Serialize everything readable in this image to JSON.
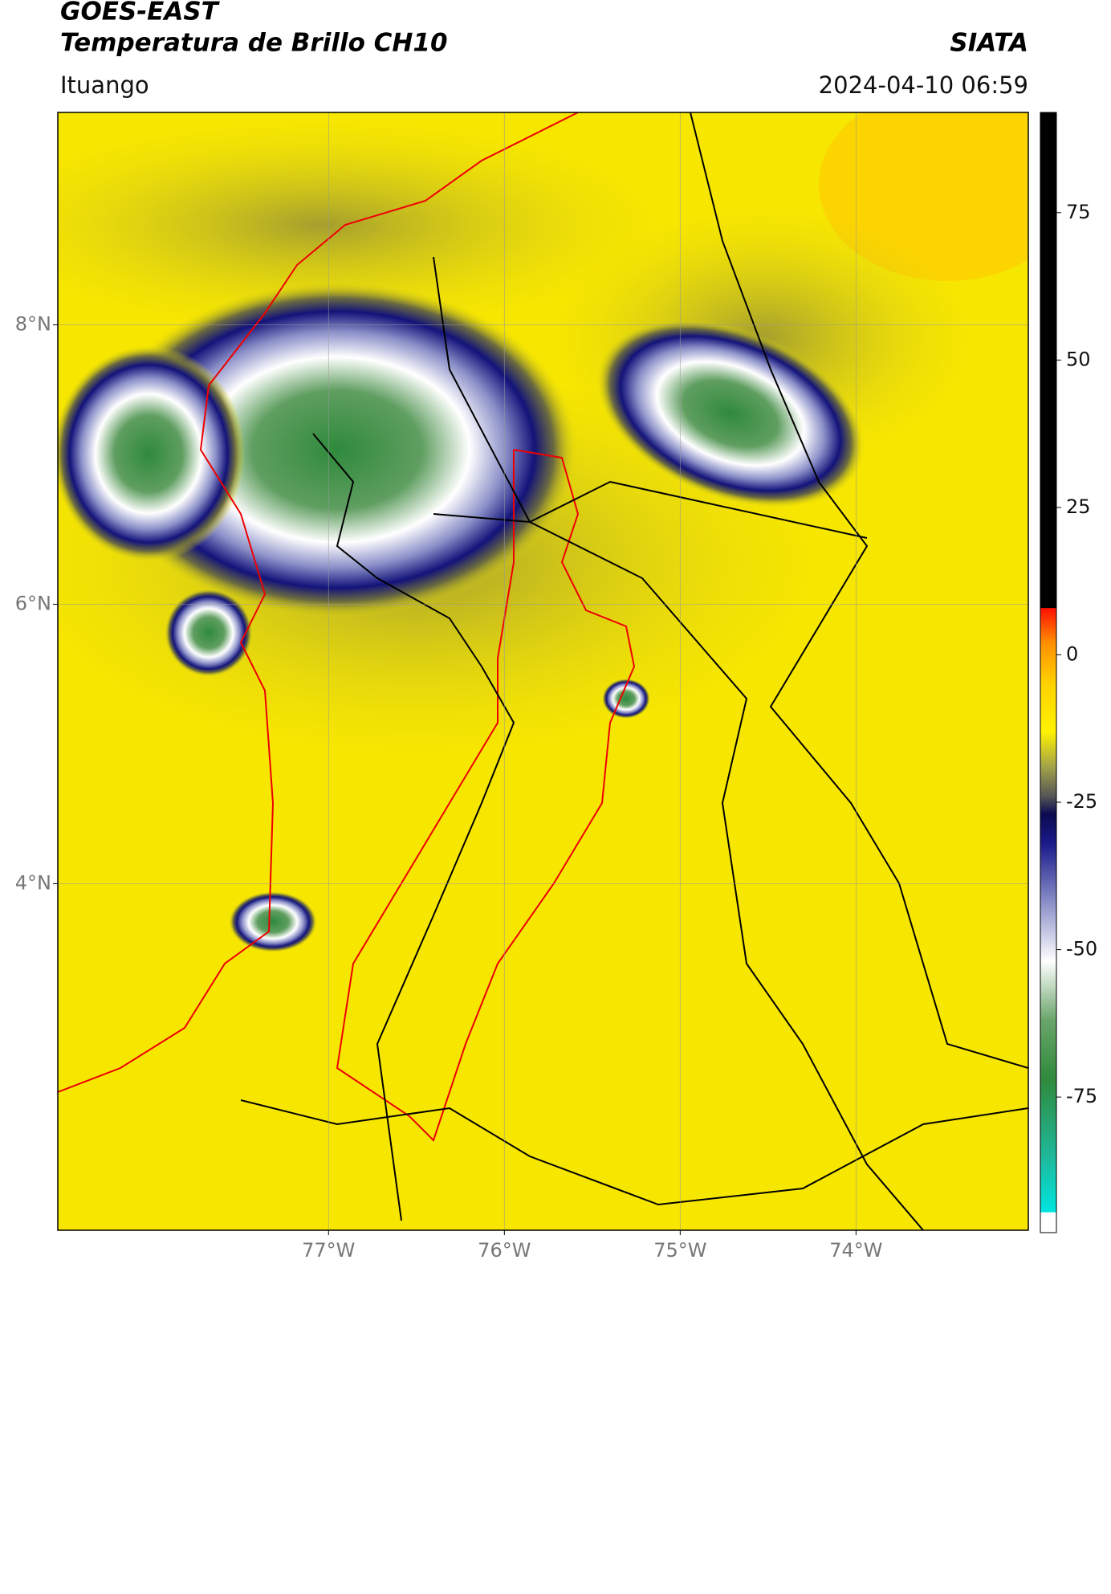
{
  "header": {
    "title": "GOES-EAST",
    "subtitle": "Temperatura de Brillo CH10",
    "brand": "SIATA",
    "location": "Ituango",
    "datetime": "2024-04-10 06:59"
  },
  "map": {
    "xlim": [
      -78.54,
      -73.02
    ],
    "ylim": [
      1.52,
      9.52
    ],
    "xticks": [
      {
        "value": -77,
        "label": "77°W"
      },
      {
        "value": -76,
        "label": "76°W"
      },
      {
        "value": -75,
        "label": "75°W"
      },
      {
        "value": -74,
        "label": "74°W"
      }
    ],
    "yticks": [
      {
        "value": 8,
        "label": "8°N"
      },
      {
        "value": 6,
        "label": "6°N"
      },
      {
        "value": 4,
        "label": "4°N"
      }
    ],
    "background": "#f7e600"
  },
  "colorbar": {
    "clim": [
      -98,
      92
    ],
    "yticks": [
      75,
      50,
      25,
      0,
      -25,
      -50,
      -75
    ],
    "stops": [
      {
        "value": -98,
        "color": "#ffffff"
      },
      {
        "value": -94.6,
        "color": "#ffffff"
      },
      {
        "value": -94.5,
        "color": "#00e5e0"
      },
      {
        "value": -85,
        "color": "#1fb89a"
      },
      {
        "value": -72,
        "color": "#2f8a3c"
      },
      {
        "value": -62,
        "color": "#6aa56a"
      },
      {
        "value": -52,
        "color": "#ffffff"
      },
      {
        "value": -42,
        "color": "#8a8fc8"
      },
      {
        "value": -32,
        "color": "#1a1a8a"
      },
      {
        "value": -27,
        "color": "#0a0a50"
      },
      {
        "value": -24,
        "color": "#555555"
      },
      {
        "value": -19,
        "color": "#a3a34a"
      },
      {
        "value": -13,
        "color": "#fff200"
      },
      {
        "value": -5,
        "color": "#ffd200"
      },
      {
        "value": 2,
        "color": "#ff9000"
      },
      {
        "value": 7.9,
        "color": "#ff1000"
      },
      {
        "value": 8,
        "color": "#000000"
      },
      {
        "value": 92,
        "color": "#000000"
      }
    ]
  }
}
